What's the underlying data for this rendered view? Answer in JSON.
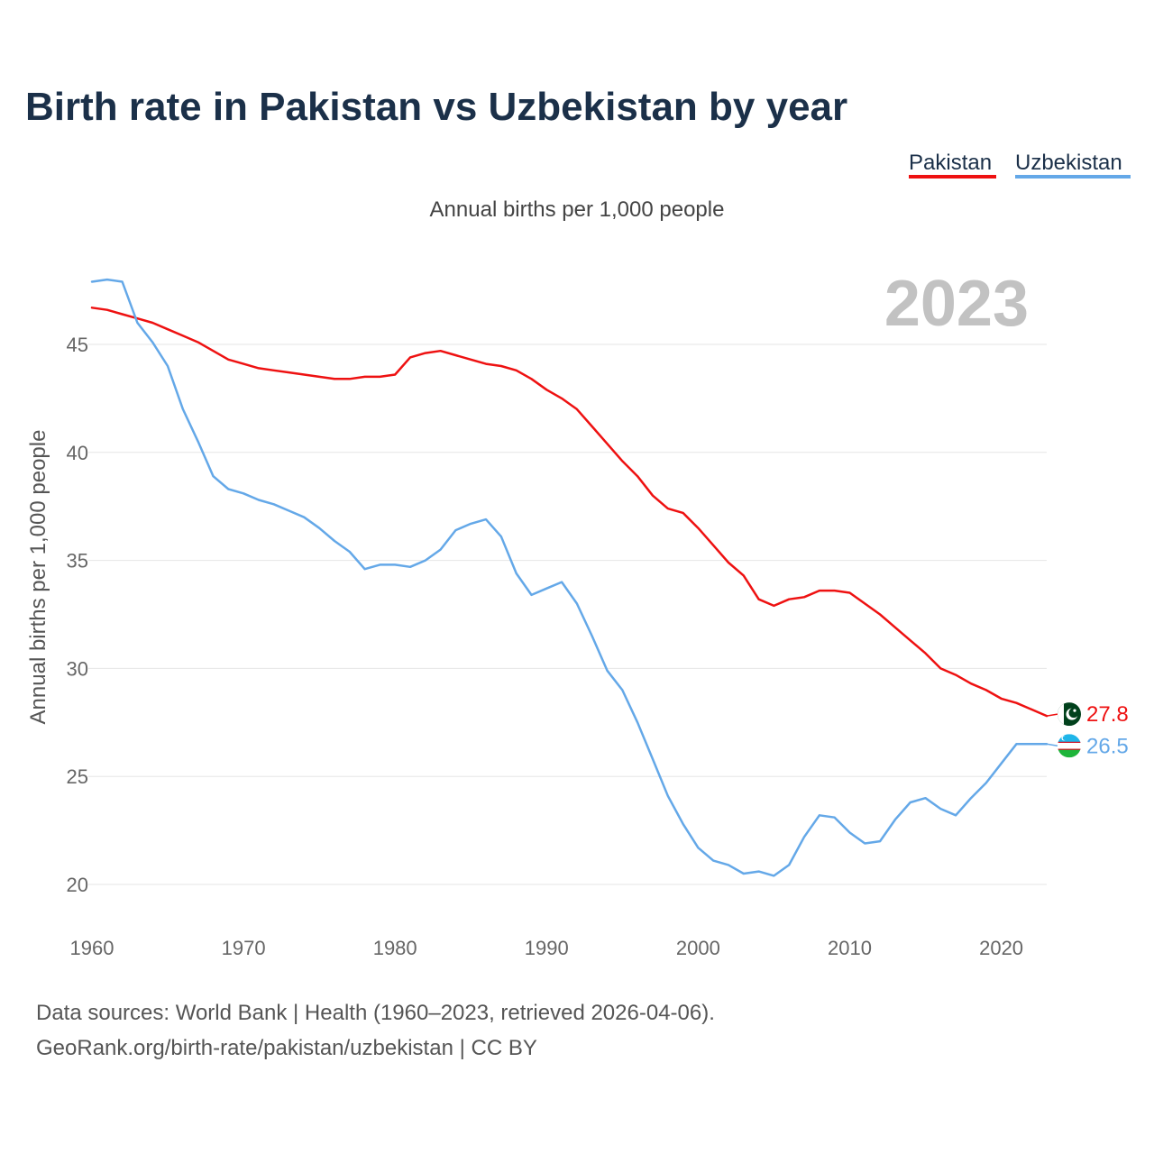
{
  "chart_data": {
    "type": "line",
    "title": "Birth rate in Pakistan vs Uzbekistan by year",
    "subtitle": "Annual births per 1,000 people",
    "ylabel": "Annual births per 1,000 people",
    "xlabel": "",
    "year_label": "2023",
    "xlim": [
      1960,
      2023
    ],
    "ylim": [
      18,
      49
    ],
    "x_ticks": [
      1960,
      1970,
      1980,
      1990,
      2000,
      2010,
      2020
    ],
    "y_ticks": [
      20,
      25,
      30,
      35,
      40,
      45
    ],
    "grid": true,
    "legend": "top-right",
    "x": [
      1960,
      1961,
      1962,
      1963,
      1964,
      1965,
      1966,
      1967,
      1968,
      1969,
      1970,
      1971,
      1972,
      1973,
      1974,
      1975,
      1976,
      1977,
      1978,
      1979,
      1980,
      1981,
      1982,
      1983,
      1984,
      1985,
      1986,
      1987,
      1988,
      1989,
      1990,
      1991,
      1992,
      1993,
      1994,
      1995,
      1996,
      1997,
      1998,
      1999,
      2000,
      2001,
      2002,
      2003,
      2004,
      2005,
      2006,
      2007,
      2008,
      2009,
      2010,
      2011,
      2012,
      2013,
      2014,
      2015,
      2016,
      2017,
      2018,
      2019,
      2020,
      2021,
      2022,
      2023
    ],
    "series": [
      {
        "name": "Pakistan",
        "color": "#ee1111",
        "end_label": "27.8",
        "values": [
          46.7,
          46.6,
          46.4,
          46.2,
          46.0,
          45.7,
          45.4,
          45.1,
          44.7,
          44.3,
          44.1,
          43.9,
          43.8,
          43.7,
          43.6,
          43.5,
          43.4,
          43.4,
          43.5,
          43.5,
          43.6,
          44.4,
          44.6,
          44.7,
          44.5,
          44.3,
          44.1,
          44.0,
          43.8,
          43.4,
          42.9,
          42.5,
          42.0,
          41.2,
          40.4,
          39.6,
          38.9,
          38.0,
          37.4,
          37.2,
          36.5,
          35.7,
          34.9,
          34.3,
          33.2,
          32.9,
          33.2,
          33.3,
          33.6,
          33.6,
          33.5,
          33.0,
          32.5,
          31.9,
          31.3,
          30.7,
          30.0,
          29.7,
          29.3,
          29.0,
          28.6,
          28.4,
          28.1,
          27.8
        ]
      },
      {
        "name": "Uzbekistan",
        "color": "#64a8e8",
        "end_label": "26.5",
        "values": [
          47.9,
          48.0,
          47.9,
          46.0,
          45.1,
          44.0,
          42.0,
          40.5,
          38.9,
          38.3,
          38.1,
          37.8,
          37.6,
          37.3,
          37.0,
          36.5,
          35.9,
          35.4,
          34.6,
          34.8,
          34.8,
          34.7,
          35.0,
          35.5,
          36.4,
          36.7,
          36.9,
          36.1,
          34.4,
          33.4,
          33.7,
          34.0,
          33.0,
          31.5,
          29.9,
          29.0,
          27.5,
          25.8,
          24.1,
          22.8,
          21.7,
          21.1,
          20.9,
          20.5,
          20.6,
          20.4,
          20.9,
          22.2,
          23.2,
          23.1,
          22.4,
          21.9,
          22.0,
          23.0,
          23.8,
          24.0,
          23.5,
          23.2,
          24.0,
          24.7,
          25.6,
          26.5,
          26.5,
          26.5
        ]
      }
    ]
  },
  "footer": {
    "source_line1": "Data sources: World Bank | Health (1960–2023, retrieved 2026-04-06).",
    "source_line2": "GeoRank.org/birth-rate/pakistan/uzbekistan | CC BY"
  }
}
